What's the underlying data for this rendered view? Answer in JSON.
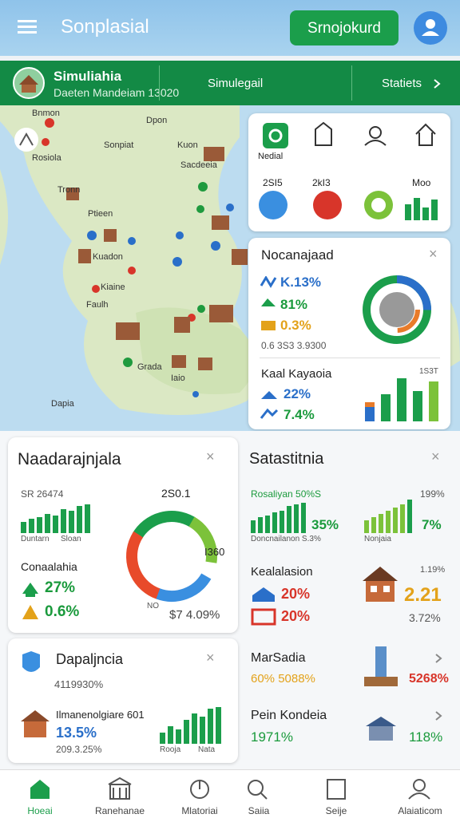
{
  "header": {
    "title": "Sonplasial",
    "button": "Srnojokurd"
  },
  "banner": {
    "title": "Simuliahia",
    "subtitle": "Daeten Mandeiam 13020",
    "center": "Simulegail",
    "right": "Statiets"
  },
  "map": {
    "labels": [
      "Bnmon",
      "Dpon",
      "Sonpiat",
      "Rosiola",
      "Kuon",
      "Sacdeeia",
      "Tronn",
      "Ptieen",
      "Kuadon",
      "Kiaine",
      "Faulh",
      "Grada",
      "Iaio",
      "Dapia"
    ]
  },
  "toolbar": {
    "label": "Nedial",
    "stats": [
      "2SI5",
      "2kI3",
      "Moo"
    ]
  },
  "panel": {
    "title": "Nocanajaad",
    "rows": [
      "K.13%",
      "81%",
      "0.3%",
      "0.6 3S3 3.9300"
    ],
    "title2": "Kaal Kayaoia",
    "rows2": [
      "22%",
      "7.4%"
    ],
    "note": "1S3T"
  },
  "cards": [
    {
      "title": "Naadarajnjala",
      "value": "SR 26474",
      "caption": [
        "Duntarn",
        "Sloan"
      ],
      "subtitle": "Conaalahia",
      "rows": [
        "27%",
        "0.6%"
      ],
      "donut": [
        "2S0.1",
        "I360",
        "NO",
        "$7 4.09%"
      ]
    },
    {
      "title": "Satastitnia",
      "line1": "Rosaliyan 50%S",
      "big1": "35%",
      "cap1": "Doncnailanon S.3%",
      "line2": "199%",
      "big2": "7%",
      "cap2": "Nonjaia",
      "sub": "Kealalasion",
      "rows": [
        "20%",
        "20%"
      ],
      "right": [
        "1.19%",
        "2.21",
        "3.72%"
      ]
    },
    {
      "title": "Dapaljncia",
      "value": "4119930%",
      "sub": "Ilmanenolgiare 601",
      "big": "13.5%",
      "cap": "209.3.25%",
      "axis": [
        "Rooja",
        "Nata"
      ]
    },
    {
      "title": "MarSadia",
      "line": "60% 5088%",
      "right": "5268%",
      "title2": "Pein Kondeia",
      "line2": "1971%",
      "right2": "118%"
    }
  ],
  "nav": [
    "Hoeai",
    "Ranehanae",
    "Mlatoriai",
    "Saiia",
    "Seije",
    "Alaiaticom"
  ]
}
